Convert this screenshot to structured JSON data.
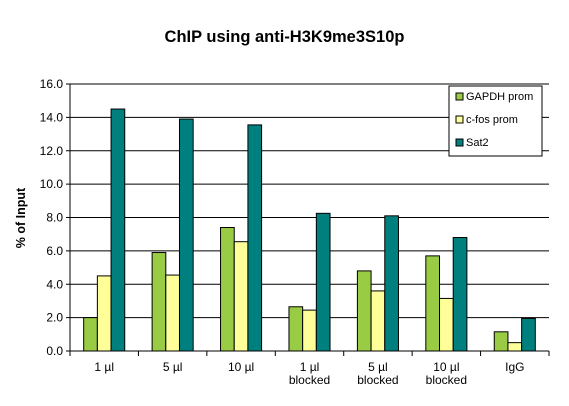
{
  "chart_data": {
    "type": "bar",
    "title": "ChIP using anti-H3K9me3S10p",
    "ylabel": "% of Input",
    "xlabel": "",
    "ylim": [
      0,
      16
    ],
    "yticks": [
      "0.0",
      "2.0",
      "4.0",
      "6.0",
      "8.0",
      "10.0",
      "12.0",
      "14.0",
      "16.0"
    ],
    "grid": true,
    "legend_position": "top-right",
    "categories": [
      [
        "1 µl"
      ],
      [
        "5 µl"
      ],
      [
        "10 µl"
      ],
      [
        "1 µl",
        "blocked"
      ],
      [
        "5 µl",
        "blocked"
      ],
      [
        "10 µl",
        "blocked"
      ],
      [
        "IgG"
      ]
    ],
    "series": [
      {
        "name": "GAPDH prom",
        "color": "#99cc44",
        "values": [
          2.0,
          5.9,
          7.4,
          2.65,
          4.8,
          5.7,
          1.15
        ]
      },
      {
        "name": "c-fos prom",
        "color": "#ffff99",
        "values": [
          4.5,
          4.55,
          6.55,
          2.45,
          3.6,
          3.15,
          0.5
        ]
      },
      {
        "name": "Sat2",
        "color": "#007f7f",
        "values": [
          14.5,
          13.9,
          13.55,
          8.25,
          8.1,
          6.8,
          1.95
        ]
      }
    ]
  }
}
